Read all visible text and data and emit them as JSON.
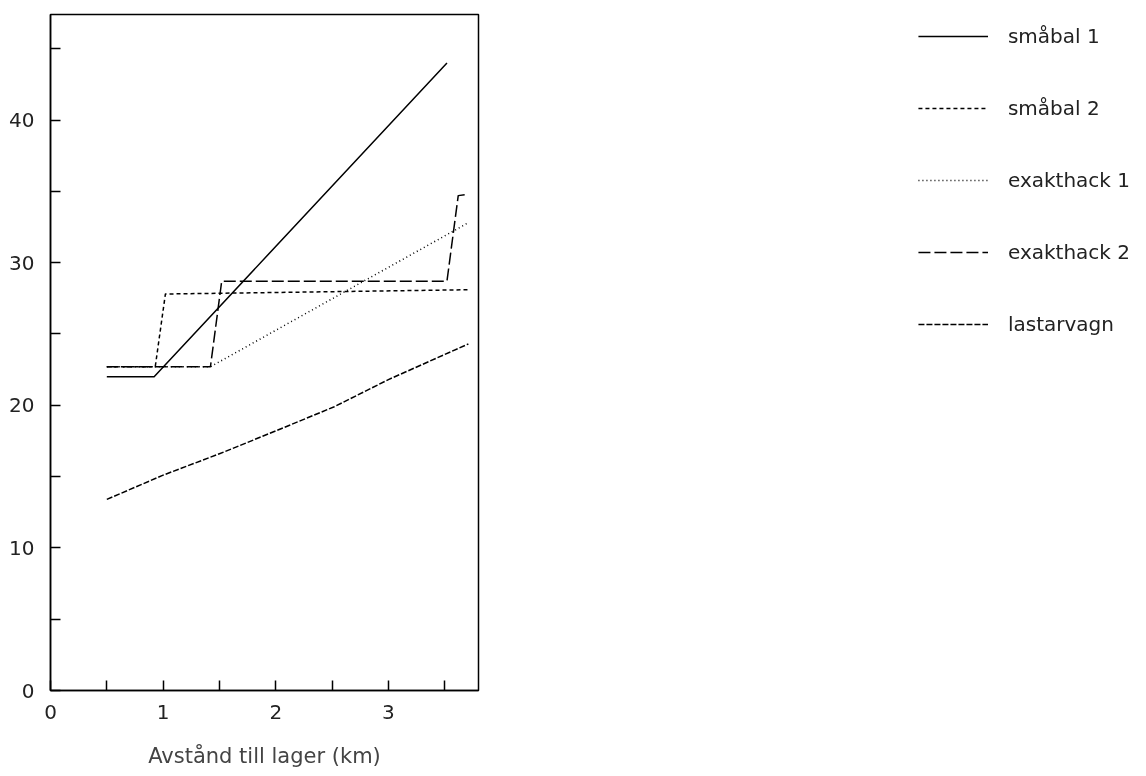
{
  "chart_data": {
    "type": "line",
    "xlabel": "Avstånd till lager (km)",
    "xlim": [
      0,
      3.8
    ],
    "ylim": [
      0,
      47.4
    ],
    "xticks": [
      0,
      {
        "value": 0.5,
        "label": null
      },
      1,
      {
        "value": 1.5,
        "label": null
      },
      2,
      {
        "value": 2.5,
        "label": null
      },
      3,
      {
        "value": 3.5,
        "label": null
      }
    ],
    "yticks": [
      0,
      {
        "value": 5,
        "label": null
      },
      10,
      {
        "value": 15,
        "label": null
      },
      20,
      {
        "value": 25,
        "label": null
      },
      30,
      {
        "value": 35,
        "label": null
      },
      40,
      {
        "value": 45,
        "label": null
      }
    ],
    "grid": false,
    "legend": "right",
    "marker": "none",
    "series": [
      {
        "name": "småbal 1",
        "color": "#000000",
        "line_style": "solid",
        "x": [
          0.5,
          0.92,
          3.52
        ],
        "values": [
          22.0,
          22.0,
          44.0
        ]
      },
      {
        "name": "småbal 2",
        "color": "#000000",
        "line_style": "dashed",
        "x": [
          0.5,
          0.93,
          1.02,
          3.71
        ],
        "values": [
          22.7,
          22.7,
          27.8,
          28.1
        ]
      },
      {
        "name": "exakthack 1",
        "color": "#000000",
        "line_style": "dotted",
        "x": [
          0.5,
          1.42,
          3.71
        ],
        "values": [
          22.7,
          22.7,
          32.8
        ]
      },
      {
        "name": "exakthack 2",
        "color": "#000000",
        "line_style": "longdash",
        "x": [
          0.5,
          1.42,
          1.52,
          3.52,
          3.62,
          3.71
        ],
        "values": [
          22.7,
          22.7,
          28.7,
          28.7,
          34.7,
          34.8
        ]
      },
      {
        "name": "lastarvagn",
        "color": "#000000",
        "line_style": "dashdense",
        "x": [
          0.5,
          1.0,
          1.5,
          2.0,
          2.52,
          3.0,
          3.71
        ],
        "values": [
          13.4,
          15.1,
          16.6,
          18.2,
          19.9,
          21.8,
          24.3
        ]
      }
    ]
  }
}
